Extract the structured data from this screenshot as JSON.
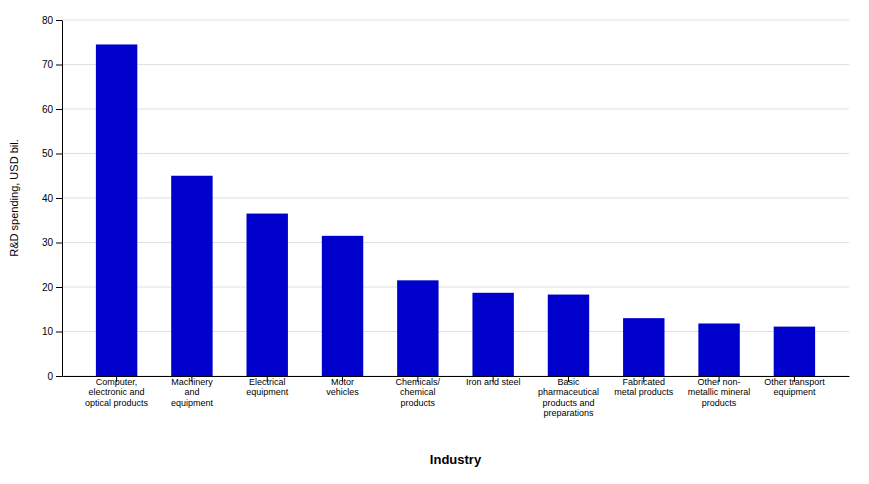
{
  "chart_data": {
    "type": "bar",
    "categories": [
      "Computer,\nelectronic and\noptical products",
      "Machinery\nand\nequipment",
      "Electrical\nequipment",
      "Motor\nvehicles",
      "Chemicals/\nchemical\nproducts",
      "Iron and steel",
      "Basic\npharmaceutical\nproducts and\npreparations",
      "Fabricated\nmetal products",
      "Other non-\nmetallic mineral\nproducts",
      "Other transport\nequipment"
    ],
    "values": [
      74.5,
      45.0,
      36.5,
      31.5,
      21.5,
      18.7,
      18.3,
      13.0,
      11.8,
      11.1
    ],
    "color": "#0000CC",
    "xlabel": "Industry",
    "ylabel": "R&D spending, USD bil.",
    "ylim": [
      0,
      80
    ],
    "yticks": [
      0,
      10,
      20,
      30,
      40,
      50,
      60,
      70,
      80
    ],
    "grid": true
  }
}
